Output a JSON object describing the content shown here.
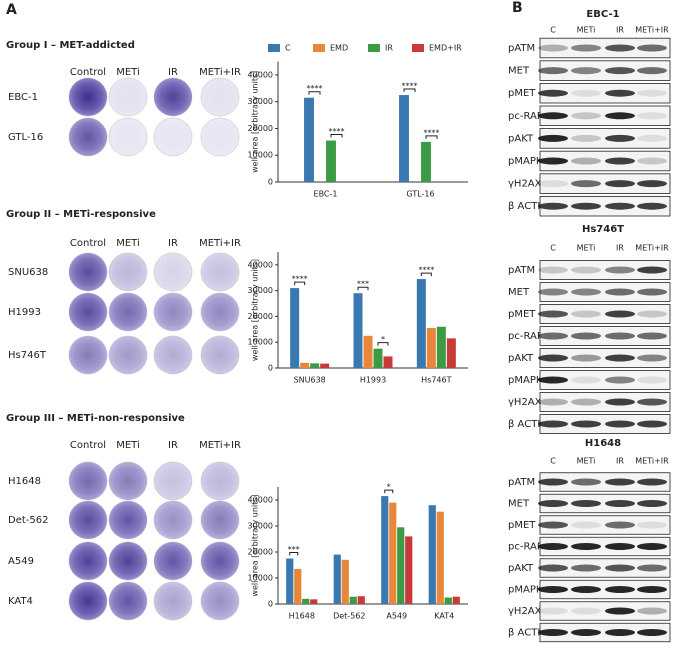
{
  "panel_a": {
    "label": "A",
    "groups": [
      {
        "title": "Group I – MET-addicted",
        "columns": [
          "Control",
          "METi",
          "IR",
          "METi+IR"
        ],
        "rows": [
          "EBC-1",
          "GTL-16"
        ]
      },
      {
        "title": "Group II – METi-responsive",
        "columns": [
          "Control",
          "METi",
          "IR",
          "METi+IR"
        ],
        "rows": [
          "SNU638",
          "H1993",
          "Hs746T"
        ]
      },
      {
        "title": "Group III – METi-non-responsive",
        "columns": [
          "Control",
          "METi",
          "IR",
          "METi+IR"
        ],
        "rows": [
          "H1648",
          "Det-562",
          "A549",
          "KAT4"
        ]
      }
    ]
  },
  "chart_data": [
    {
      "type": "bar",
      "ylabel": "well area [arbitrary units]",
      "categories": [
        "EBC-1",
        "GTL-16"
      ],
      "series": [
        {
          "name": "C",
          "color": "#3a78b0",
          "values": [
            31500,
            32500
          ]
        },
        {
          "name": "EMD",
          "color": "#e8873a",
          "values": [
            0,
            0
          ]
        },
        {
          "name": "IR",
          "color": "#3c9a45",
          "values": [
            15500,
            15000
          ]
        },
        {
          "name": "EMD+IR",
          "color": "#c83a3a",
          "values": [
            0,
            0
          ]
        }
      ],
      "ylim": [
        0,
        45000
      ],
      "yticks": [
        0,
        10000,
        20000,
        30000,
        40000
      ],
      "legend": "top",
      "annotations": [
        "****",
        "****",
        "****",
        "****"
      ]
    },
    {
      "type": "bar",
      "ylabel": "well area [arbitrary units]",
      "categories": [
        "SNU638",
        "H1993",
        "Hs746T"
      ],
      "series": [
        {
          "color": "#3a78b0",
          "values": [
            31000,
            29000,
            34500
          ]
        },
        {
          "color": "#e8873a",
          "values": [
            2000,
            12500,
            15500
          ]
        },
        {
          "color": "#3c9a45",
          "values": [
            1800,
            7500,
            16000
          ]
        },
        {
          "color": "#c83a3a",
          "values": [
            1700,
            4500,
            11500
          ]
        }
      ],
      "ylim": [
        0,
        45000
      ],
      "yticks": [
        0,
        10000,
        20000,
        30000,
        40000
      ],
      "annotations": [
        "****",
        "***",
        "*",
        "****"
      ]
    },
    {
      "type": "bar",
      "ylabel": "well area [arbitrary units]",
      "categories": [
        "H1648",
        "Det-562",
        "A549",
        "KAT4"
      ],
      "series": [
        {
          "color": "#3a78b0",
          "values": [
            17500,
            19000,
            41500,
            38000
          ]
        },
        {
          "color": "#e8873a",
          "values": [
            13500,
            17000,
            39000,
            35500
          ]
        },
        {
          "color": "#3c9a45",
          "values": [
            2000,
            2800,
            29500,
            2500
          ]
        },
        {
          "color": "#c83a3a",
          "values": [
            1800,
            3000,
            26000,
            2800
          ]
        }
      ],
      "ylim": [
        0,
        45000
      ],
      "yticks": [
        0,
        10000,
        20000,
        30000,
        40000
      ],
      "annotations": [
        "***",
        "*"
      ]
    }
  ],
  "panel_b": {
    "label": "B",
    "blots": [
      {
        "title": "EBC-1",
        "columns": [
          "C",
          "METi",
          "IR",
          "METi+IR"
        ],
        "rows": [
          "pATM",
          "MET",
          "pMET",
          "pc-RAF",
          "pAKT",
          "pMAPK",
          "γH2AX",
          "β ACTIN"
        ]
      },
      {
        "title": "Hs746T",
        "columns": [
          "C",
          "METi",
          "IR",
          "METi+IR"
        ],
        "rows": [
          "pATM",
          "MET",
          "pMET",
          "pc-RAF",
          "pAKT",
          "pMAPK",
          "γH2AX",
          "β ACTIN"
        ]
      },
      {
        "title": "H1648",
        "columns": [
          "C",
          "METi",
          "IR",
          "METi+IR"
        ],
        "rows": [
          "pATM",
          "MET",
          "pMET",
          "pc-RAF",
          "pAKT",
          "pMAPK",
          "γH2AX",
          "β ACTIN"
        ]
      }
    ]
  }
}
